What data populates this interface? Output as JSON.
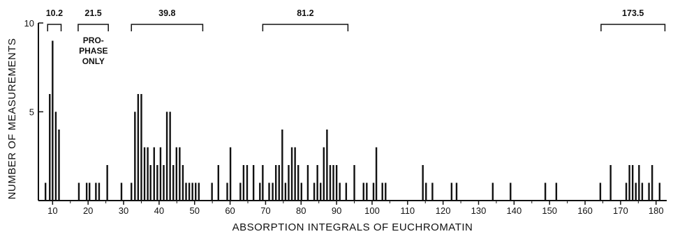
{
  "chart_data": {
    "type": "bar",
    "xlabel": "ABSORPTION INTEGRALS OF EUCHROMATIN",
    "ylabel": "NUMBER OF MEASUREMENTS",
    "xlim": [
      6,
      183
    ],
    "ylim": [
      0,
      10
    ],
    "x_ticks": [
      "10",
      "20",
      "30",
      "40",
      "50",
      "60",
      "70",
      "80",
      "90",
      "100",
      "110",
      "120",
      "130",
      "140",
      "150",
      "160",
      "170",
      "180"
    ],
    "y_ticks": [
      "5",
      "10"
    ],
    "grid": false,
    "bars": [
      {
        "x": 8,
        "y": 1
      },
      {
        "x": 9.2,
        "y": 6
      },
      {
        "x": 10,
        "y": 9
      },
      {
        "x": 10.9,
        "y": 5
      },
      {
        "x": 11.8,
        "y": 4
      },
      {
        "x": 17.4,
        "y": 1
      },
      {
        "x": 19.6,
        "y": 1
      },
      {
        "x": 20.4,
        "y": 1
      },
      {
        "x": 22.2,
        "y": 1
      },
      {
        "x": 23.1,
        "y": 1
      },
      {
        "x": 25.4,
        "y": 2
      },
      {
        "x": 29.4,
        "y": 1
      },
      {
        "x": 32.2,
        "y": 1
      },
      {
        "x": 33.2,
        "y": 5
      },
      {
        "x": 34.1,
        "y": 6
      },
      {
        "x": 35,
        "y": 6
      },
      {
        "x": 35.9,
        "y": 3
      },
      {
        "x": 36.8,
        "y": 3
      },
      {
        "x": 37.6,
        "y": 2
      },
      {
        "x": 38.6,
        "y": 3
      },
      {
        "x": 39.5,
        "y": 2
      },
      {
        "x": 40.4,
        "y": 3
      },
      {
        "x": 41.3,
        "y": 2
      },
      {
        "x": 42.2,
        "y": 5
      },
      {
        "x": 43.1,
        "y": 5
      },
      {
        "x": 44,
        "y": 2
      },
      {
        "x": 44.9,
        "y": 3
      },
      {
        "x": 45.8,
        "y": 3
      },
      {
        "x": 46.7,
        "y": 2
      },
      {
        "x": 47.6,
        "y": 1
      },
      {
        "x": 48.5,
        "y": 1
      },
      {
        "x": 49.4,
        "y": 1
      },
      {
        "x": 50.3,
        "y": 1
      },
      {
        "x": 51.2,
        "y": 1
      },
      {
        "x": 54.9,
        "y": 1
      },
      {
        "x": 56.7,
        "y": 2
      },
      {
        "x": 59.2,
        "y": 1
      },
      {
        "x": 60.1,
        "y": 3
      },
      {
        "x": 62.9,
        "y": 1
      },
      {
        "x": 63.8,
        "y": 2
      },
      {
        "x": 64.8,
        "y": 2
      },
      {
        "x": 66.6,
        "y": 2
      },
      {
        "x": 68.4,
        "y": 1
      },
      {
        "x": 69.2,
        "y": 2
      },
      {
        "x": 71,
        "y": 1
      },
      {
        "x": 72,
        "y": 1
      },
      {
        "x": 72.9,
        "y": 2
      },
      {
        "x": 73.8,
        "y": 2
      },
      {
        "x": 74.7,
        "y": 4
      },
      {
        "x": 75.6,
        "y": 1
      },
      {
        "x": 76.5,
        "y": 2
      },
      {
        "x": 77.4,
        "y": 3
      },
      {
        "x": 78.3,
        "y": 3
      },
      {
        "x": 79.2,
        "y": 2
      },
      {
        "x": 80.1,
        "y": 1
      },
      {
        "x": 81.9,
        "y": 2
      },
      {
        "x": 83.7,
        "y": 1
      },
      {
        "x": 84.6,
        "y": 2
      },
      {
        "x": 85.5,
        "y": 1
      },
      {
        "x": 86.4,
        "y": 3
      },
      {
        "x": 87.3,
        "y": 4
      },
      {
        "x": 88.2,
        "y": 2
      },
      {
        "x": 89.1,
        "y": 2
      },
      {
        "x": 90,
        "y": 2
      },
      {
        "x": 90.9,
        "y": 1
      },
      {
        "x": 92.7,
        "y": 1
      },
      {
        "x": 95,
        "y": 2
      },
      {
        "x": 97.6,
        "y": 1
      },
      {
        "x": 98.5,
        "y": 1
      },
      {
        "x": 100.4,
        "y": 1
      },
      {
        "x": 101.2,
        "y": 3
      },
      {
        "x": 102.9,
        "y": 1
      },
      {
        "x": 103.8,
        "y": 1
      },
      {
        "x": 114.3,
        "y": 2
      },
      {
        "x": 115.2,
        "y": 1
      },
      {
        "x": 117,
        "y": 1
      },
      {
        "x": 122.4,
        "y": 1
      },
      {
        "x": 123.8,
        "y": 1
      },
      {
        "x": 134,
        "y": 1
      },
      {
        "x": 139,
        "y": 1
      },
      {
        "x": 148.8,
        "y": 1
      },
      {
        "x": 151.9,
        "y": 1
      },
      {
        "x": 164.3,
        "y": 1
      },
      {
        "x": 167.2,
        "y": 2
      },
      {
        "x": 171.6,
        "y": 1
      },
      {
        "x": 172.5,
        "y": 2
      },
      {
        "x": 173.4,
        "y": 2
      },
      {
        "x": 174.3,
        "y": 1
      },
      {
        "x": 175.2,
        "y": 2
      },
      {
        "x": 176.1,
        "y": 1
      },
      {
        "x": 178,
        "y": 1
      },
      {
        "x": 178.9,
        "y": 2
      },
      {
        "x": 181,
        "y": 1
      }
    ],
    "brackets": [
      {
        "label": "10.2",
        "x_start": 8.6,
        "x_end": 12.4
      },
      {
        "label": "21.5",
        "x_start": 17.2,
        "x_end": 25.7
      },
      {
        "label": "39.8",
        "x_start": 32.2,
        "x_end": 52.3
      },
      {
        "label": "81.2",
        "x_start": 69.2,
        "x_end": 93.2
      },
      {
        "label": "173.5",
        "x_start": 164.5,
        "x_end": 182.5
      }
    ],
    "annotation": {
      "lines": [
        "PRO-",
        "PHASE",
        "ONLY"
      ],
      "x": 21.5
    }
  }
}
